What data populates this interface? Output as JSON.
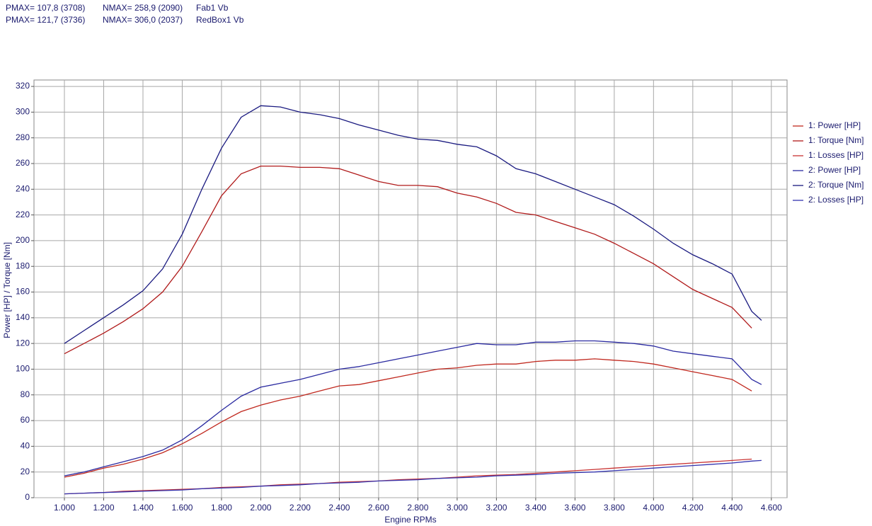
{
  "chart_data": {
    "type": "line",
    "header": [
      [
        "PMAX= 107,8 (3708)",
        "NMAX= 258,9 (2090)",
        "Fab1 Vb"
      ],
      [
        "PMAX= 121,7 (3736)",
        "NMAX= 306,0 (2037)",
        "RedBox1 Vb"
      ]
    ],
    "xlabel": "Engine RPMs",
    "ylabel": "Power [HP] / Torque [Nm]",
    "x": [
      1000,
      1100,
      1200,
      1300,
      1400,
      1500,
      1600,
      1700,
      1800,
      1900,
      2000,
      2100,
      2200,
      2300,
      2400,
      2500,
      2600,
      2700,
      2800,
      2900,
      3000,
      3100,
      3200,
      3300,
      3400,
      3500,
      3600,
      3700,
      3800,
      3900,
      4000,
      4100,
      4200,
      4300,
      4400,
      4500,
      4550
    ],
    "series": [
      {
        "name": "1: Power [HP]",
        "color": "#c0281e",
        "values": [
          16,
          19,
          23,
          26,
          30,
          35,
          42,
          50,
          59,
          67,
          72,
          76,
          79,
          83,
          87,
          88,
          91,
          94,
          97,
          100,
          101,
          103,
          104,
          104,
          106,
          107,
          107,
          108,
          107,
          106,
          104,
          101,
          98,
          95,
          92,
          83,
          null
        ]
      },
      {
        "name": "1: Torque [Nm]",
        "color": "#b01a1a",
        "values": [
          112,
          120,
          128,
          137,
          147,
          160,
          180,
          207,
          235,
          252,
          258,
          258,
          257,
          257,
          256,
          251,
          246,
          243,
          243,
          242,
          237,
          234,
          229,
          222,
          220,
          215,
          210,
          205,
          198,
          190,
          182,
          172,
          162,
          155,
          148,
          132,
          null
        ]
      },
      {
        "name": "1: Losses [HP]",
        "color": "#c83232",
        "values": [
          3,
          3.5,
          4,
          5,
          5.5,
          6,
          6.5,
          7,
          8,
          8.5,
          9,
          10,
          10.5,
          11,
          12,
          12.5,
          13,
          14,
          14.5,
          15,
          16,
          17,
          17.5,
          18,
          19,
          20,
          21,
          22,
          23,
          24,
          25,
          26,
          27,
          28,
          29,
          30,
          null
        ]
      },
      {
        "name": "2: Power [HP]",
        "color": "#2a2aa0",
        "values": [
          17,
          20,
          24,
          28,
          32,
          37,
          45,
          56,
          68,
          79,
          86,
          89,
          92,
          96,
          100,
          102,
          105,
          108,
          111,
          114,
          117,
          120,
          119,
          119,
          121,
          121,
          122,
          122,
          121,
          120,
          118,
          114,
          112,
          110,
          108,
          92,
          88
        ]
      },
      {
        "name": "2: Torque [Nm]",
        "color": "#1a1a80",
        "values": [
          120,
          130,
          140,
          150,
          161,
          178,
          205,
          240,
          272,
          296,
          305,
          304,
          300,
          298,
          295,
          290,
          286,
          282,
          279,
          278,
          275,
          273,
          266,
          256,
          252,
          246,
          240,
          234,
          228,
          219,
          209,
          198,
          189,
          182,
          174,
          145,
          138
        ]
      },
      {
        "name": "2: Losses [HP]",
        "color": "#3434b0",
        "values": [
          3,
          3.5,
          4,
          4.5,
          5,
          5.5,
          6,
          7,
          7.5,
          8,
          9,
          9.5,
          10,
          11,
          11.5,
          12,
          13,
          13.5,
          14,
          15,
          15.5,
          16,
          17,
          17.5,
          18,
          19,
          19.5,
          20,
          21,
          22,
          23,
          24,
          25,
          26,
          27,
          28.5,
          29
        ]
      }
    ],
    "xlim": [
      845,
      4680
    ],
    "ylim": [
      0,
      325
    ],
    "xticks": [
      {
        "value": 1000,
        "label": "1.000"
      },
      {
        "value": 1200,
        "label": "1.200"
      },
      {
        "value": 1400,
        "label": "1.400"
      },
      {
        "value": 1600,
        "label": "1.600"
      },
      {
        "value": 1800,
        "label": "1.800"
      },
      {
        "value": 2000,
        "label": "2.000"
      },
      {
        "value": 2200,
        "label": "2.200"
      },
      {
        "value": 2400,
        "label": "2.400"
      },
      {
        "value": 2600,
        "label": "2.600"
      },
      {
        "value": 2800,
        "label": "2.800"
      },
      {
        "value": 3000,
        "label": "3.000"
      },
      {
        "value": 3200,
        "label": "3.200"
      },
      {
        "value": 3400,
        "label": "3.400"
      },
      {
        "value": 3600,
        "label": "3.600"
      },
      {
        "value": 3800,
        "label": "3.800"
      },
      {
        "value": 4000,
        "label": "4.000"
      },
      {
        "value": 4200,
        "label": "4.200"
      },
      {
        "value": 4400,
        "label": "4.400"
      },
      {
        "value": 4600,
        "label": "4.600"
      }
    ],
    "yticks": [
      0,
      20,
      40,
      60,
      80,
      100,
      120,
      140,
      160,
      180,
      200,
      220,
      240,
      260,
      280,
      300,
      320
    ],
    "grid": true,
    "legend": "right"
  }
}
